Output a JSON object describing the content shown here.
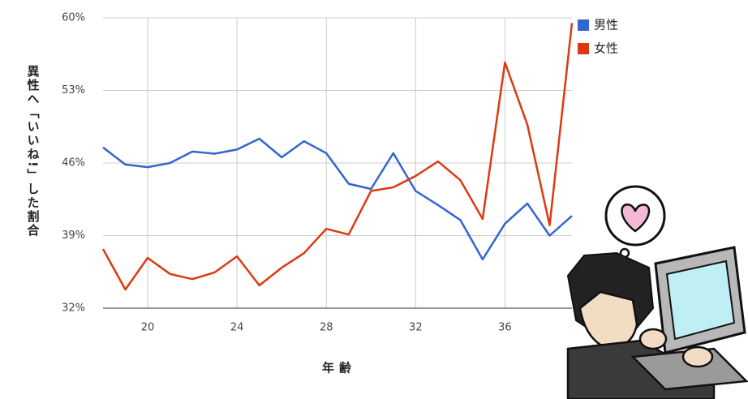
{
  "chart_data": {
    "type": "line",
    "y_label": "異性へ「いいね!」した割合",
    "x_label": "年齢",
    "x": [
      18,
      19,
      20,
      21,
      22,
      23,
      24,
      25,
      26,
      27,
      28,
      29,
      30,
      31,
      32,
      33,
      34,
      35,
      36,
      37,
      38,
      39
    ],
    "series": [
      {
        "name": "男性",
        "color": "#3366cc",
        "values": [
          47.5,
          45.85,
          45.6,
          46.0,
          47.1,
          46.9,
          47.3,
          48.35,
          46.55,
          48.1,
          46.95,
          44.0,
          43.5,
          46.95,
          43.3,
          41.95,
          40.5,
          36.7,
          40.15,
          42.1,
          39.0,
          40.9
        ]
      },
      {
        "name": "女性",
        "color": "#dc3912",
        "values": [
          37.7,
          33.8,
          36.85,
          35.3,
          34.8,
          35.45,
          37.0,
          34.2,
          35.9,
          37.3,
          39.65,
          39.1,
          43.3,
          43.65,
          44.75,
          46.15,
          44.35,
          40.6,
          55.7,
          49.7,
          40.0,
          59.5
        ]
      }
    ],
    "xlim": [
      18,
      39
    ],
    "xticks": [
      20,
      24,
      28,
      32,
      36
    ],
    "ylim": [
      32,
      60
    ],
    "yticks": [
      {
        "value": 32,
        "label": "32%"
      },
      {
        "value": 39,
        "label": "39%"
      },
      {
        "value": 46,
        "label": "46%"
      },
      {
        "value": 53,
        "label": "53%"
      },
      {
        "value": 60,
        "label": "60%"
      }
    ],
    "grid": true,
    "legend": "right-top"
  }
}
